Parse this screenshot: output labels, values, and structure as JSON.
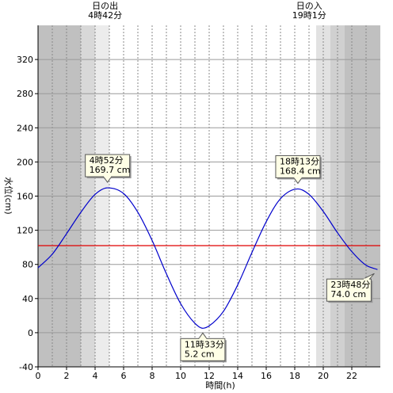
{
  "chart_data": {
    "type": "line",
    "xlabel": "時間(h)",
    "ylabel": "水位(cm)",
    "xlim": [
      0,
      24
    ],
    "ylim": [
      -40,
      360
    ],
    "x_ticks": [
      0,
      2,
      4,
      6,
      8,
      10,
      12,
      14,
      16,
      18,
      20,
      22
    ],
    "x_tick_labels": [
      "0",
      "2",
      "4",
      "6",
      "8",
      "10",
      "12",
      "14",
      "16",
      "18",
      "20",
      "22"
    ],
    "y_ticks": [
      -40,
      0,
      40,
      80,
      120,
      160,
      200,
      240,
      280,
      320
    ],
    "y_tick_labels": [
      "-40",
      "0",
      "40",
      "80",
      "120",
      "160",
      "200",
      "240",
      "280",
      "320"
    ],
    "grid": true,
    "reference_line": {
      "y": 102,
      "color": "#e00000"
    },
    "series": [
      {
        "color": "#0000cc",
        "x": [
          0,
          1,
          2,
          3,
          4,
          4.87,
          6,
          7,
          8,
          9,
          10,
          11,
          11.55,
          12,
          13,
          14,
          15,
          16,
          17,
          18.22,
          19,
          20,
          21,
          22,
          23,
          23.8
        ],
        "y": [
          76,
          92,
          116,
          141,
          162,
          169.7,
          163,
          141,
          108,
          69,
          34,
          11,
          5.2,
          8,
          25,
          56,
          94,
          130,
          157,
          168.4,
          162,
          142,
          117,
          95,
          79,
          74
        ]
      }
    ],
    "sun": {
      "sunrise_label": [
        "日の出",
        "4時42分"
      ],
      "sunset_label": [
        "日の入",
        "19時1分"
      ],
      "sunrise_hour": 4.7,
      "sunset_hour": 19.017
    },
    "shading": [
      {
        "from": 0,
        "to": 3,
        "color": "#c0c0c0"
      },
      {
        "from": 3,
        "to": 4,
        "color": "#d8d8d8"
      },
      {
        "from": 4,
        "to": 5,
        "color": "#ececec"
      },
      {
        "from": 19.5,
        "to": 20.5,
        "color": "#e2e2e2"
      },
      {
        "from": 20.5,
        "to": 21.5,
        "color": "#d0d0d0"
      },
      {
        "from": 21.5,
        "to": 24,
        "color": "#c0c0c0"
      }
    ],
    "annotations": [
      {
        "lines": [
          "4時52分",
          "169.7 cm"
        ],
        "x": 4.87,
        "y": 169.7,
        "placement": "above"
      },
      {
        "lines": [
          "11時33分",
          "5.2 cm"
        ],
        "x": 11.55,
        "y": 5.2,
        "placement": "below"
      },
      {
        "lines": [
          "18時13分",
          "168.4 cm"
        ],
        "x": 18.22,
        "y": 168.4,
        "placement": "above"
      },
      {
        "lines": [
          "23時48分",
          "74.0 cm"
        ],
        "x": 23.8,
        "y": 74.0,
        "placement": "below-left"
      }
    ]
  }
}
